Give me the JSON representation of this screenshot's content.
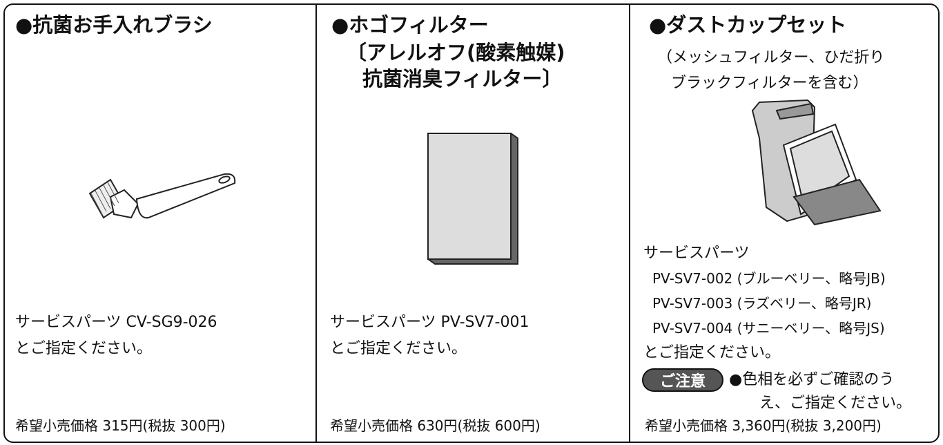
{
  "columns": [
    {
      "title": [
        "●抗菌お手入れブラシ"
      ],
      "parts": [
        "サービスパーツ CV-SG9-026",
        "とご指定ください。"
      ],
      "price": "希望小売価格 315円(税抜 300円)"
    },
    {
      "title": [
        "●ホゴフィルター",
        "〔アレルオフ(酸素触媒)",
        "抗菌消臭フィルター〕"
      ],
      "parts": [
        "サービスパーツ PV-SV7-001",
        "とご指定ください。"
      ],
      "price": "希望小売価格 630円(税抜 600円)"
    },
    {
      "title": [
        "●ダストカップセット"
      ],
      "subtitle": [
        "（メッシュフィルター、ひだ折り",
        "ブラックフィルターを含む）"
      ],
      "parts": [
        "サービスパーツ",
        "PV-SV7-002 (ブルーベリー、略号JB)",
        "PV-SV7-003 (ラズベリー、略号JR)",
        "PV-SV7-004 (サニーベリー、略号JS)",
        "とご指定ください。"
      ],
      "caution": {
        "badge": "ご注意",
        "text": [
          "●色相を必ずご確認のう",
          "え、ご指定ください。"
        ]
      },
      "price": "希望小売価格 3,360円(税抜 3,200円)"
    }
  ]
}
